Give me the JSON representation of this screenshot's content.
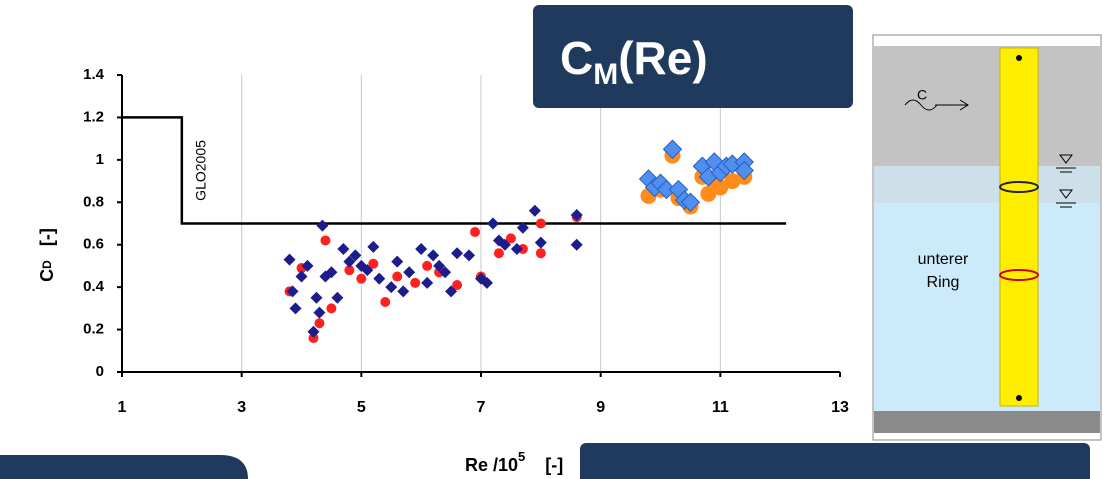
{
  "chart_data": {
    "type": "scatter",
    "title_box": {
      "text": "C",
      "subscript": "M",
      "suffix": "(Re)"
    },
    "ylabel": {
      "text": "C",
      "subscript": "D",
      "unit": "[-]"
    },
    "xlabel": {
      "text": "Re /10",
      "superscript": "5",
      "unit": "[-]"
    },
    "annotation": "GLO2005",
    "xlim": [
      1,
      13
    ],
    "xticks": [
      1,
      3,
      5,
      7,
      9,
      11,
      13
    ],
    "ylim": [
      0,
      1.4
    ],
    "yticks": [
      0,
      0.2,
      0.4,
      0.6,
      0.8,
      1,
      1.2,
      1.4
    ],
    "grid": "x",
    "series": [
      {
        "marker": "line",
        "color": "#000000",
        "x": [
          1,
          2,
          2,
          12.1
        ],
        "values": [
          1.2,
          1.2,
          0.7,
          0.7
        ]
      },
      {
        "marker": "circle",
        "color": "#ff2020",
        "x": [
          3.8,
          4.0,
          4.2,
          4.3,
          4.4,
          4.5,
          4.8,
          5.0,
          5.2,
          5.4,
          5.6,
          5.9,
          6.1,
          6.3,
          6.6,
          6.9,
          7.0,
          7.3,
          7.5,
          7.7,
          8.0,
          8.0,
          8.6
        ],
        "values": [
          0.38,
          0.49,
          0.16,
          0.23,
          0.62,
          0.3,
          0.48,
          0.44,
          0.51,
          0.33,
          0.45,
          0.42,
          0.5,
          0.47,
          0.41,
          0.66,
          0.45,
          0.56,
          0.63,
          0.58,
          0.56,
          0.7,
          0.73
        ]
      },
      {
        "marker": "diamond",
        "color": "#1c1c8c",
        "x": [
          3.8,
          3.85,
          3.9,
          4.0,
          4.1,
          4.2,
          4.25,
          4.3,
          4.35,
          4.4,
          4.5,
          4.6,
          4.7,
          4.8,
          4.9,
          5.0,
          5.1,
          5.2,
          5.3,
          5.5,
          5.6,
          5.7,
          5.8,
          6.0,
          6.1,
          6.2,
          6.3,
          6.4,
          6.5,
          6.6,
          6.8,
          7.0,
          7.1,
          7.2,
          7.3,
          7.4,
          7.6,
          7.7,
          7.9,
          8.0,
          8.6,
          8.6
        ],
        "values": [
          0.53,
          0.38,
          0.3,
          0.45,
          0.5,
          0.19,
          0.35,
          0.28,
          0.69,
          0.45,
          0.47,
          0.35,
          0.58,
          0.52,
          0.55,
          0.5,
          0.48,
          0.59,
          0.44,
          0.4,
          0.52,
          0.38,
          0.47,
          0.58,
          0.42,
          0.55,
          0.5,
          0.47,
          0.38,
          0.56,
          0.55,
          0.44,
          0.42,
          0.7,
          0.62,
          0.6,
          0.58,
          0.68,
          0.76,
          0.61,
          0.74,
          0.6
        ]
      },
      {
        "marker": "circle",
        "color": "#ff8c1a",
        "x": [
          9.8,
          9.9,
          10.0,
          10.2,
          10.3,
          10.5,
          10.7,
          10.8,
          10.9,
          11.0,
          11.2,
          11.4
        ],
        "values": [
          0.83,
          0.88,
          0.86,
          1.02,
          0.82,
          0.78,
          0.92,
          0.84,
          0.9,
          0.87,
          0.9,
          0.92
        ]
      },
      {
        "marker": "diamond",
        "color": "#4f8fef",
        "x": [
          9.8,
          9.9,
          10.0,
          10.1,
          10.2,
          10.3,
          10.4,
          10.5,
          10.7,
          10.8,
          10.9,
          11.0,
          11.1,
          11.2,
          11.4,
          11.4
        ],
        "values": [
          0.91,
          0.87,
          0.89,
          0.86,
          1.05,
          0.86,
          0.81,
          0.8,
          0.97,
          0.92,
          0.99,
          0.94,
          0.97,
          0.98,
          0.99,
          0.95
        ]
      }
    ]
  },
  "diagram": {
    "flow_label": "C",
    "ring_label_1": "unterer",
    "ring_label_2": "Ring"
  }
}
